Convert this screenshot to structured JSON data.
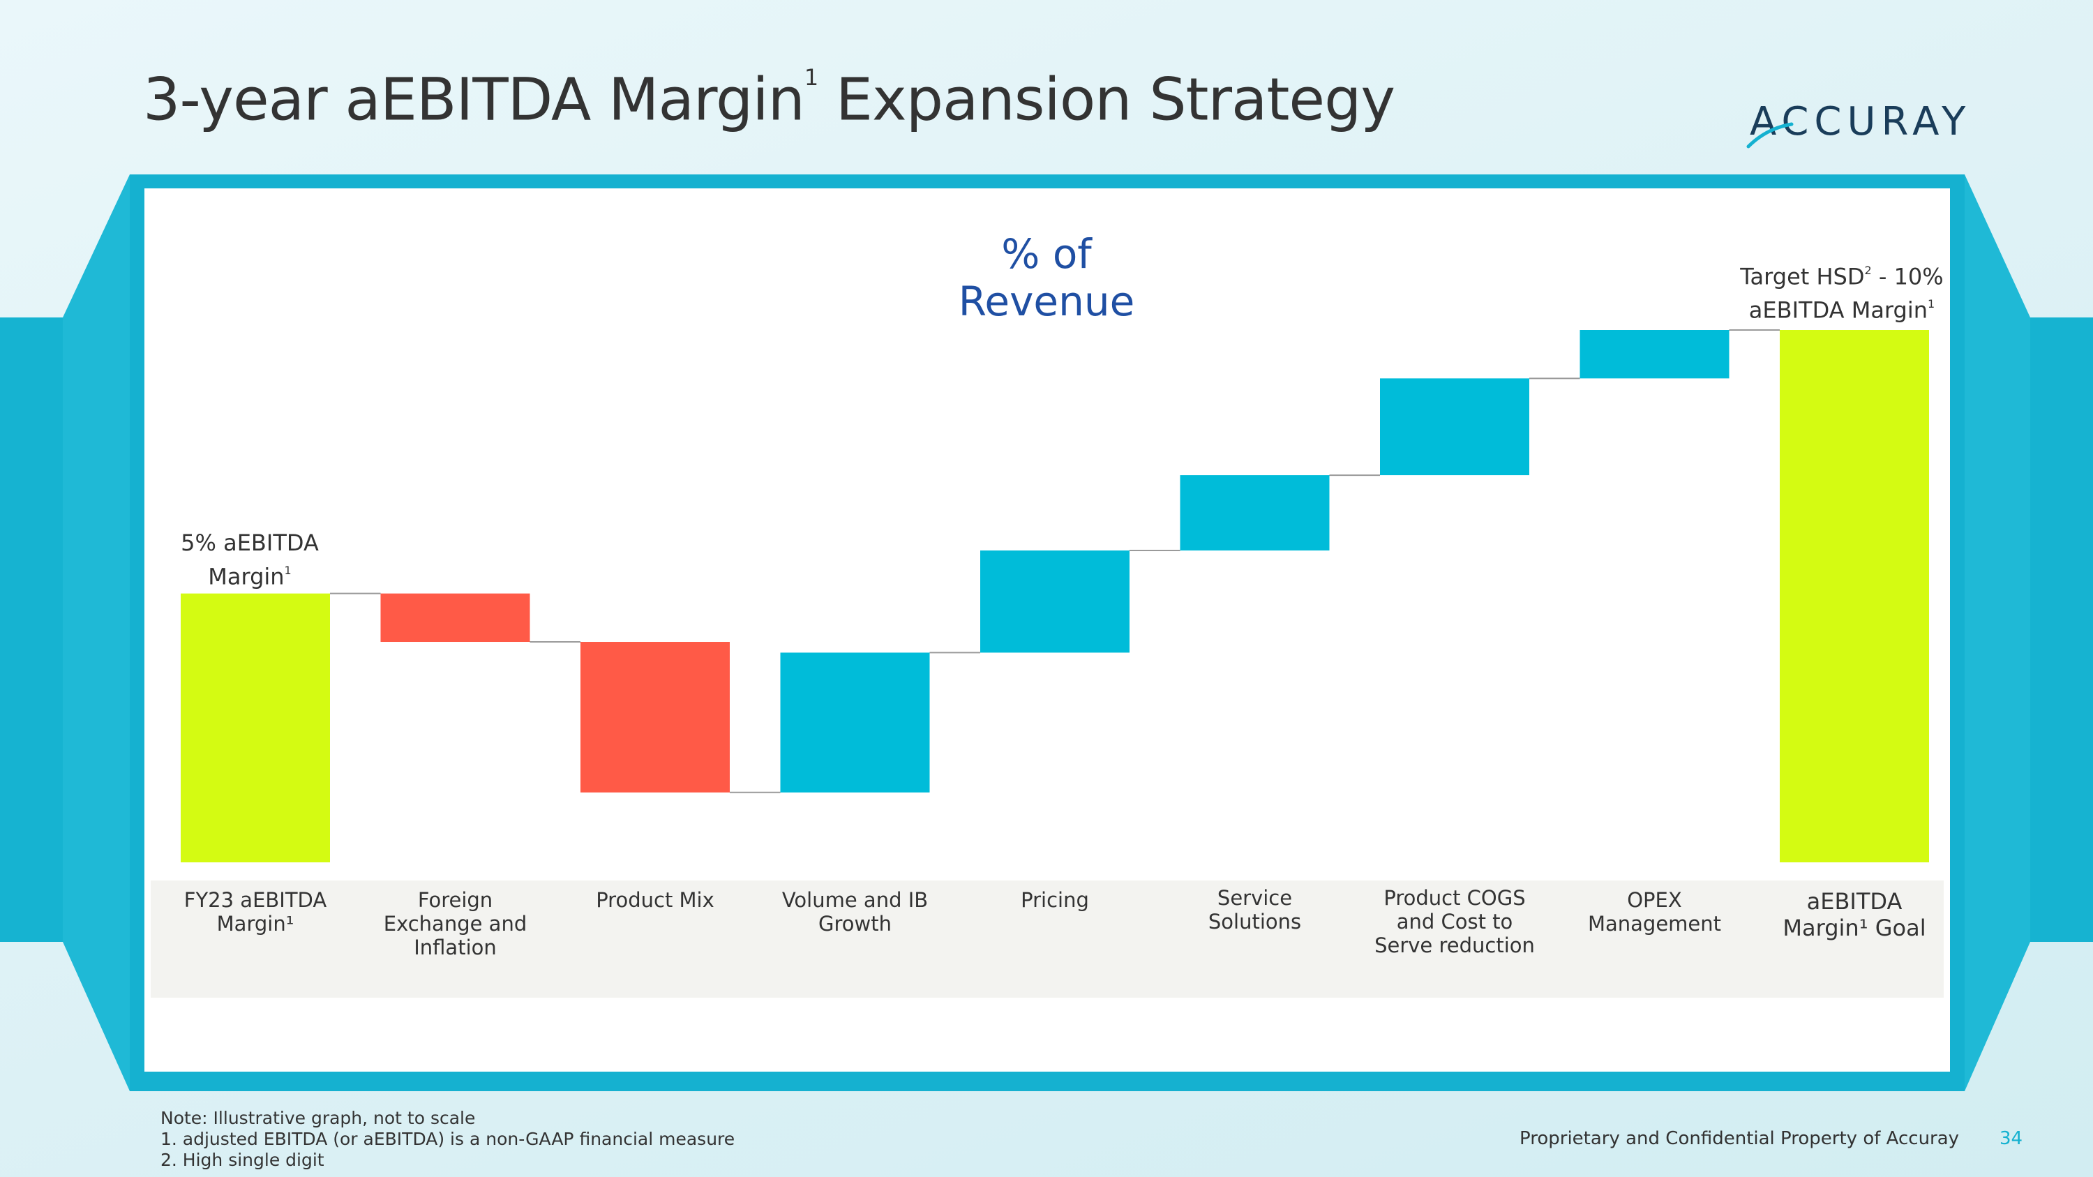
{
  "slide": {
    "title_main": "3-year aEBITDA Margin",
    "title_sup": "1",
    "title_tail": " Expansion Strategy",
    "logo_text": "ACCURAY",
    "page_number": "34",
    "confidential": "Proprietary and Confidential Property of Accuray",
    "footnotes": [
      "Note:  Illustrative graph, not to scale",
      "1. adjusted EBITDA (or aEBITDA) is a non-GAAP financial measure",
      "2. High single digit"
    ]
  },
  "colors": {
    "accent": "#15b1d0",
    "lime": "#d4fb12",
    "decrease": "#ff5a47",
    "increase": "#00bcd9",
    "title_blue": "#1f4fa3"
  },
  "chart_data": {
    "type": "bar",
    "subtype": "waterfall",
    "title": "% of Revenue",
    "categories": [
      "FY23 aEBITDA Margin¹",
      "Foreign Exchange and Inflation",
      "Product Mix",
      "Volume and IB Growth",
      "Pricing",
      "Service Solutions",
      "Product COGS and Cost to Serve reduction",
      "OPEX Management",
      "aEBITDA Margin¹ Goal"
    ],
    "bars": [
      {
        "kind": "total",
        "start": 0,
        "end": 5.0
      },
      {
        "kind": "decrease",
        "start": 5.0,
        "end": 4.1
      },
      {
        "kind": "decrease",
        "start": 4.1,
        "end": 1.3
      },
      {
        "kind": "increase",
        "start": 1.3,
        "end": 3.9
      },
      {
        "kind": "increase",
        "start": 3.9,
        "end": 5.8
      },
      {
        "kind": "increase",
        "start": 5.8,
        "end": 7.2
      },
      {
        "kind": "increase",
        "start": 7.2,
        "end": 9.0
      },
      {
        "kind": "increase",
        "start": 9.0,
        "end": 9.9
      },
      {
        "kind": "total",
        "start": 0,
        "end": 9.9
      }
    ],
    "ylim": [
      0,
      11
    ],
    "annotations": {
      "start_line1": "5% aEBITDA",
      "start_line2": "Margin",
      "start_sup": "1",
      "end_line1": "Target HSD",
      "end_sup1": "2",
      "end_line1_tail": " - 10%",
      "end_line2": "aEBITDA Margin",
      "end_sup2": "1"
    },
    "note": "Illustrative graph, not to scale"
  }
}
